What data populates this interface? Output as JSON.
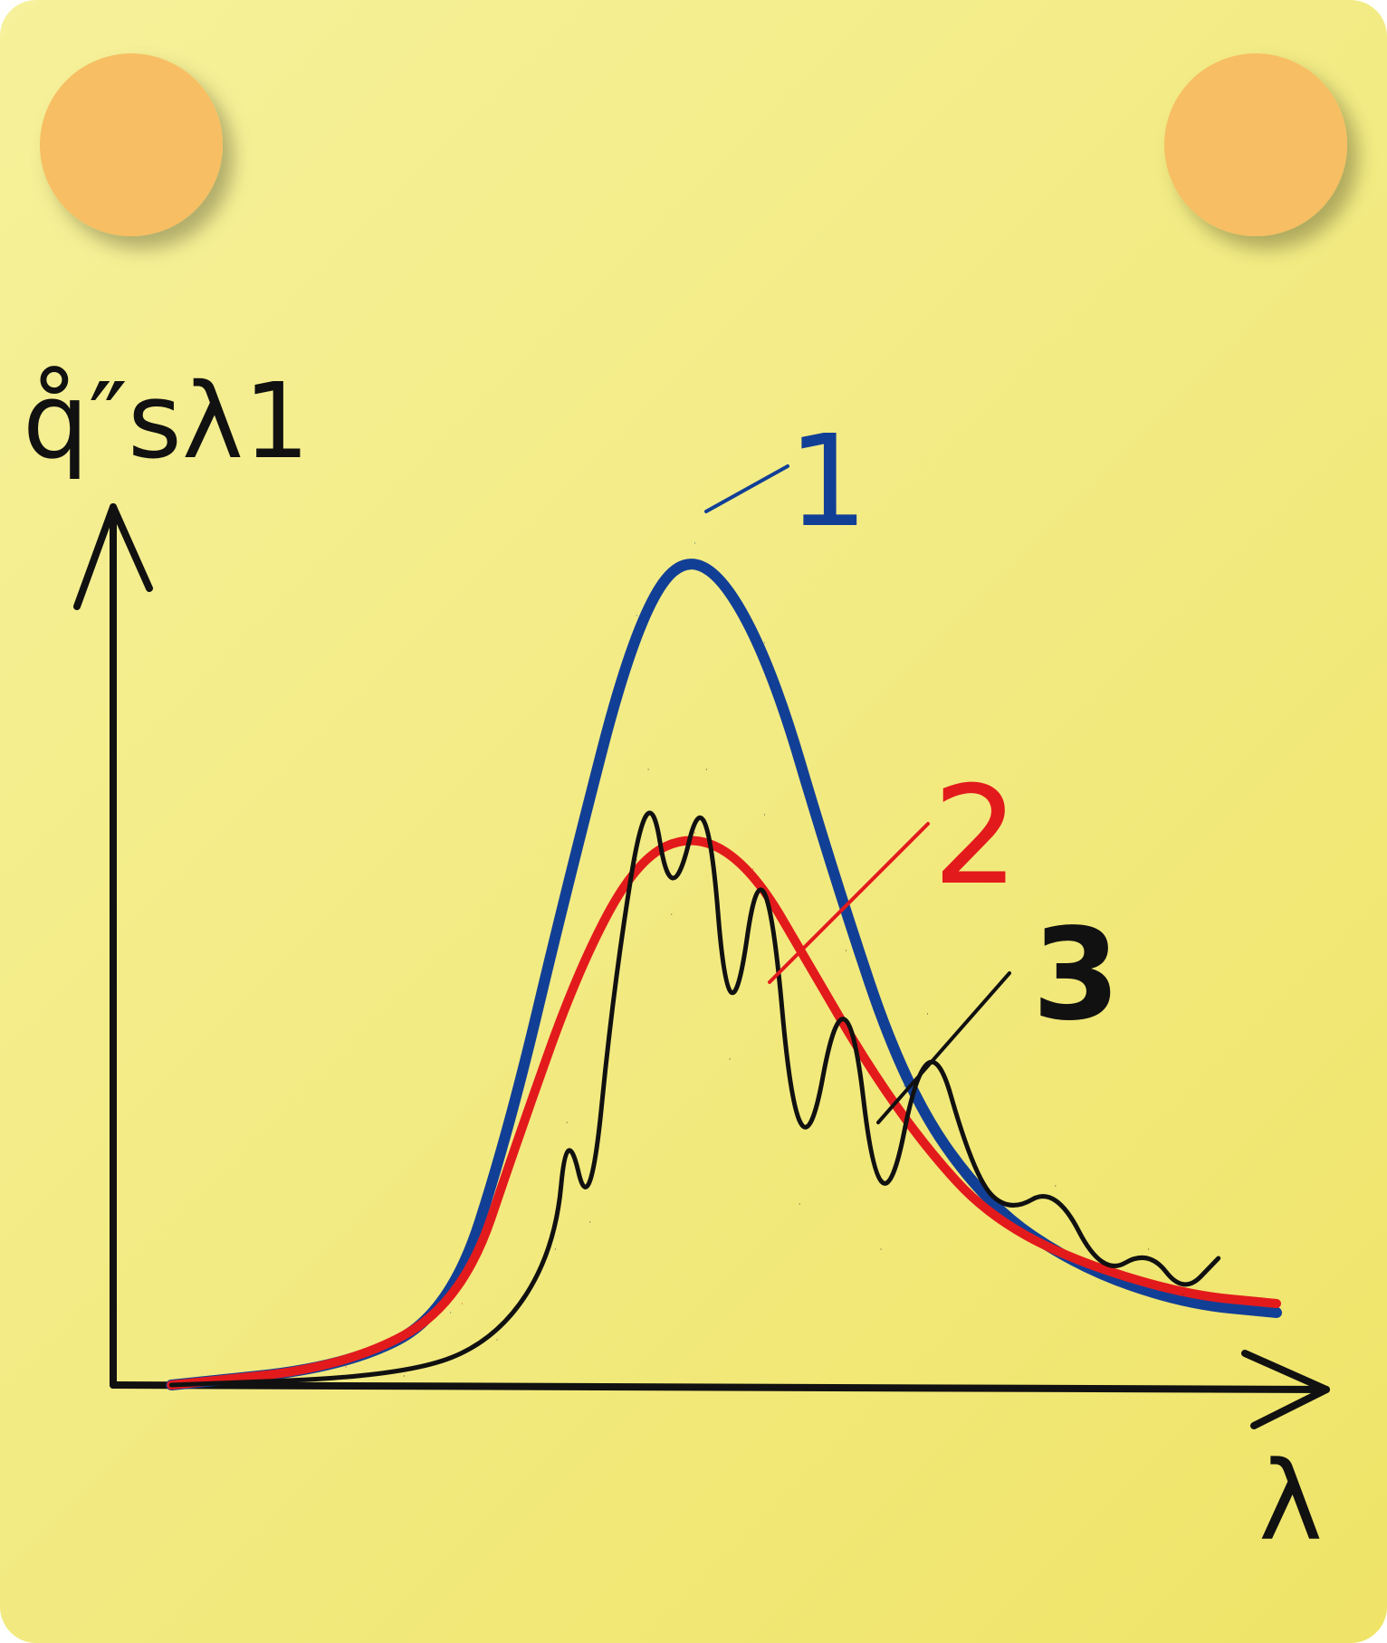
{
  "colors": {
    "background": "#f2ea80",
    "pin": "#f7be63",
    "axis": "#111111",
    "series1": "#123f96",
    "series2": "#e31a1c",
    "series3": "#111111"
  },
  "chart_data": {
    "type": "line",
    "title": "",
    "ylabel": "q̊″sλ1",
    "xlabel": "λ",
    "grid": false,
    "legend": "none",
    "xlim": [
      0,
      10
    ],
    "ylim": [
      0,
      10
    ],
    "series": [
      {
        "label": "1",
        "points": [
          [
            0.5,
            0.0
          ],
          [
            2.0,
            0.2
          ],
          [
            2.9,
            0.8
          ],
          [
            3.4,
            2.8
          ],
          [
            3.9,
            5.5
          ],
          [
            4.5,
            8.5
          ],
          [
            5.0,
            9.3
          ],
          [
            5.6,
            8.2
          ],
          [
            6.2,
            5.6
          ],
          [
            6.8,
            3.3
          ],
          [
            7.5,
            2.0
          ],
          [
            8.3,
            1.3
          ],
          [
            9.2,
            0.9
          ],
          [
            10.0,
            0.8
          ]
        ]
      },
      {
        "label": "2",
        "points": [
          [
            0.5,
            0.0
          ],
          [
            2.0,
            0.2
          ],
          [
            3.0,
            0.9
          ],
          [
            3.5,
            2.8
          ],
          [
            4.0,
            4.6
          ],
          [
            4.5,
            5.8
          ],
          [
            5.0,
            6.1
          ],
          [
            5.5,
            5.7
          ],
          [
            6.0,
            4.6
          ],
          [
            6.5,
            3.5
          ],
          [
            7.0,
            2.6
          ],
          [
            7.5,
            1.9
          ],
          [
            8.2,
            1.4
          ],
          [
            9.2,
            1.0
          ],
          [
            10.0,
            0.9
          ]
        ]
      },
      {
        "label": "3",
        "points": [
          [
            0.5,
            0.0
          ],
          [
            2.5,
            0.1
          ],
          [
            3.3,
            0.5
          ],
          [
            3.8,
            1.5
          ],
          [
            3.9,
            2.9
          ],
          [
            4.1,
            1.8
          ],
          [
            4.3,
            4.4
          ],
          [
            4.6,
            6.8
          ],
          [
            4.8,
            5.2
          ],
          [
            5.1,
            6.8
          ],
          [
            5.3,
            3.6
          ],
          [
            5.6,
            6.3
          ],
          [
            5.9,
            2.0
          ],
          [
            6.3,
            4.8
          ],
          [
            6.6,
            1.5
          ],
          [
            7.0,
            4.1
          ],
          [
            7.4,
            2.3
          ],
          [
            7.7,
            1.9
          ],
          [
            8.1,
            2.2
          ],
          [
            8.5,
            1.2
          ],
          [
            8.9,
            1.5
          ],
          [
            9.2,
            1.0
          ],
          [
            9.5,
            1.4
          ]
        ]
      }
    ]
  }
}
